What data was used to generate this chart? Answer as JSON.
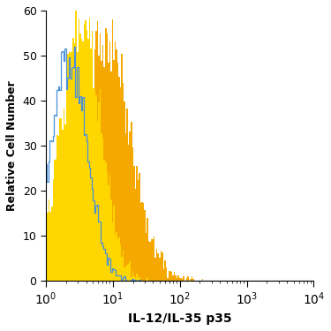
{
  "title": "",
  "xlabel": "IL-12/IL-35 p35",
  "ylabel": "Relative Cell Number",
  "xlim": [
    1,
    10000
  ],
  "ylim": [
    0,
    60
  ],
  "yticks": [
    0,
    10,
    20,
    30,
    40,
    50,
    60
  ],
  "background_color": "#ffffff",
  "isotype_color": "#4a90d9",
  "untreated_color": "#FFD700",
  "lps_color": "#F5A800",
  "isotype_peak_x_log": 0.34,
  "isotype_sigma": 0.28,
  "isotype_peak_y": 52,
  "untreated_peak_x_log": 0.52,
  "untreated_sigma": 0.3,
  "untreated_peak_y": 60,
  "lps_peak_x_log": 0.88,
  "lps_sigma": 0.38,
  "lps_peak_y": 58,
  "n_bins": 200,
  "n_samples": 8000
}
